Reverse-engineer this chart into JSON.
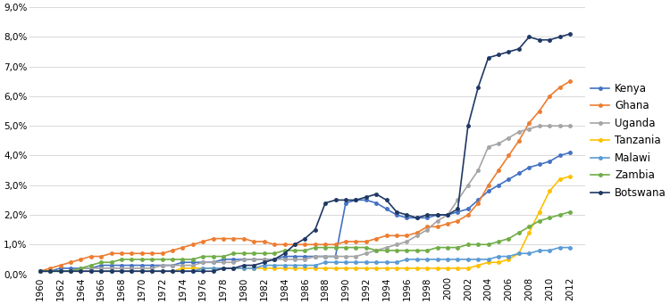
{
  "years": [
    1960,
    1961,
    1962,
    1963,
    1964,
    1965,
    1966,
    1967,
    1968,
    1969,
    1970,
    1971,
    1972,
    1973,
    1974,
    1975,
    1976,
    1977,
    1978,
    1979,
    1980,
    1981,
    1982,
    1983,
    1984,
    1985,
    1986,
    1987,
    1988,
    1989,
    1990,
    1991,
    1992,
    1993,
    1994,
    1995,
    1996,
    1997,
    1998,
    1999,
    2000,
    2001,
    2002,
    2003,
    2004,
    2005,
    2006,
    2007,
    2008,
    2009,
    2010,
    2011,
    2012
  ],
  "series": {
    "Kenya": [
      0.001,
      0.001,
      0.002,
      0.002,
      0.002,
      0.002,
      0.003,
      0.003,
      0.003,
      0.003,
      0.003,
      0.003,
      0.003,
      0.003,
      0.004,
      0.004,
      0.004,
      0.004,
      0.005,
      0.005,
      0.005,
      0.005,
      0.005,
      0.005,
      0.006,
      0.006,
      0.006,
      0.006,
      0.006,
      0.006,
      0.024,
      0.025,
      0.025,
      0.024,
      0.022,
      0.02,
      0.019,
      0.019,
      0.019,
      0.02,
      0.02,
      0.021,
      0.022,
      0.025,
      0.028,
      0.03,
      0.032,
      0.034,
      0.036,
      0.037,
      0.038,
      0.04,
      0.041
    ],
    "Ghana": [
      0.001,
      0.002,
      0.003,
      0.004,
      0.005,
      0.006,
      0.006,
      0.007,
      0.007,
      0.007,
      0.007,
      0.007,
      0.007,
      0.008,
      0.009,
      0.01,
      0.011,
      0.012,
      0.012,
      0.012,
      0.012,
      0.011,
      0.011,
      0.01,
      0.01,
      0.01,
      0.01,
      0.01,
      0.01,
      0.01,
      0.011,
      0.011,
      0.011,
      0.012,
      0.013,
      0.013,
      0.013,
      0.014,
      0.016,
      0.016,
      0.017,
      0.018,
      0.02,
      0.024,
      0.03,
      0.035,
      0.04,
      0.045,
      0.051,
      0.055,
      0.06,
      0.063,
      0.065
    ],
    "Uganda": [
      0.001,
      0.001,
      0.001,
      0.001,
      0.002,
      0.002,
      0.002,
      0.002,
      0.002,
      0.002,
      0.002,
      0.002,
      0.003,
      0.003,
      0.003,
      0.003,
      0.004,
      0.004,
      0.004,
      0.004,
      0.005,
      0.005,
      0.005,
      0.005,
      0.005,
      0.005,
      0.005,
      0.006,
      0.006,
      0.006,
      0.006,
      0.006,
      0.007,
      0.008,
      0.009,
      0.01,
      0.011,
      0.013,
      0.015,
      0.018,
      0.02,
      0.025,
      0.03,
      0.035,
      0.043,
      0.044,
      0.046,
      0.048,
      0.049,
      0.05,
      0.05,
      0.05,
      0.05
    ],
    "Tanzania": [
      0.001,
      0.001,
      0.001,
      0.001,
      0.001,
      0.001,
      0.001,
      0.001,
      0.001,
      0.001,
      0.001,
      0.001,
      0.001,
      0.001,
      0.002,
      0.002,
      0.002,
      0.002,
      0.002,
      0.002,
      0.002,
      0.002,
      0.002,
      0.002,
      0.002,
      0.002,
      0.002,
      0.002,
      0.002,
      0.002,
      0.002,
      0.002,
      0.002,
      0.002,
      0.002,
      0.002,
      0.002,
      0.002,
      0.002,
      0.002,
      0.002,
      0.002,
      0.002,
      0.003,
      0.004,
      0.004,
      0.005,
      0.007,
      0.014,
      0.021,
      0.028,
      0.032,
      0.033
    ],
    "Malawi": [
      0.001,
      0.001,
      0.001,
      0.001,
      0.001,
      0.001,
      0.001,
      0.001,
      0.001,
      0.001,
      0.001,
      0.001,
      0.001,
      0.001,
      0.001,
      0.001,
      0.002,
      0.002,
      0.002,
      0.002,
      0.002,
      0.002,
      0.003,
      0.003,
      0.003,
      0.003,
      0.003,
      0.003,
      0.004,
      0.004,
      0.004,
      0.004,
      0.004,
      0.004,
      0.004,
      0.004,
      0.005,
      0.005,
      0.005,
      0.005,
      0.005,
      0.005,
      0.005,
      0.005,
      0.005,
      0.006,
      0.006,
      0.007,
      0.007,
      0.008,
      0.008,
      0.009,
      0.009
    ],
    "Zambia": [
      0.001,
      0.001,
      0.001,
      0.001,
      0.002,
      0.003,
      0.004,
      0.004,
      0.005,
      0.005,
      0.005,
      0.005,
      0.005,
      0.005,
      0.005,
      0.005,
      0.006,
      0.006,
      0.006,
      0.007,
      0.007,
      0.007,
      0.007,
      0.007,
      0.008,
      0.008,
      0.008,
      0.009,
      0.009,
      0.009,
      0.009,
      0.009,
      0.009,
      0.008,
      0.008,
      0.008,
      0.008,
      0.008,
      0.008,
      0.009,
      0.009,
      0.009,
      0.01,
      0.01,
      0.01,
      0.011,
      0.012,
      0.014,
      0.016,
      0.018,
      0.019,
      0.02,
      0.021
    ],
    "Botswana": [
      0.001,
      0.001,
      0.001,
      0.001,
      0.001,
      0.001,
      0.001,
      0.001,
      0.001,
      0.001,
      0.001,
      0.001,
      0.001,
      0.001,
      0.001,
      0.001,
      0.001,
      0.001,
      0.002,
      0.002,
      0.003,
      0.003,
      0.004,
      0.005,
      0.007,
      0.01,
      0.012,
      0.015,
      0.024,
      0.025,
      0.025,
      0.025,
      0.026,
      0.027,
      0.025,
      0.021,
      0.02,
      0.019,
      0.02,
      0.02,
      0.02,
      0.022,
      0.05,
      0.063,
      0.073,
      0.074,
      0.075,
      0.076,
      0.08,
      0.079,
      0.079,
      0.08,
      0.081
    ]
  },
  "colors": {
    "Kenya": "#4472C4",
    "Ghana": "#ED7D31",
    "Uganda": "#A5A5A5",
    "Tanzania": "#FFC000",
    "Malawi": "#5B9BD5",
    "Zambia": "#70AD47",
    "Botswana": "#1F3864"
  },
  "ylim": [
    0,
    0.09
  ],
  "yticks": [
    0.0,
    0.01,
    0.02,
    0.03,
    0.04,
    0.05,
    0.06,
    0.07,
    0.08,
    0.09
  ],
  "ytick_labels": [
    "0,0%",
    "1,0%",
    "2,0%",
    "3,0%",
    "4,0%",
    "5,0%",
    "6,0%",
    "7,0%",
    "8,0%",
    "9,0%"
  ],
  "xtick_years": [
    1960,
    1962,
    1964,
    1966,
    1968,
    1970,
    1972,
    1974,
    1976,
    1978,
    1980,
    1982,
    1984,
    1986,
    1988,
    1990,
    1992,
    1994,
    1996,
    1998,
    2000,
    2002,
    2004,
    2006,
    2008,
    2010,
    2012
  ],
  "background_color": "#FFFFFF",
  "grid_color": "#D9D9D9",
  "figsize": [
    7.5,
    3.41
  ],
  "dpi": 100
}
